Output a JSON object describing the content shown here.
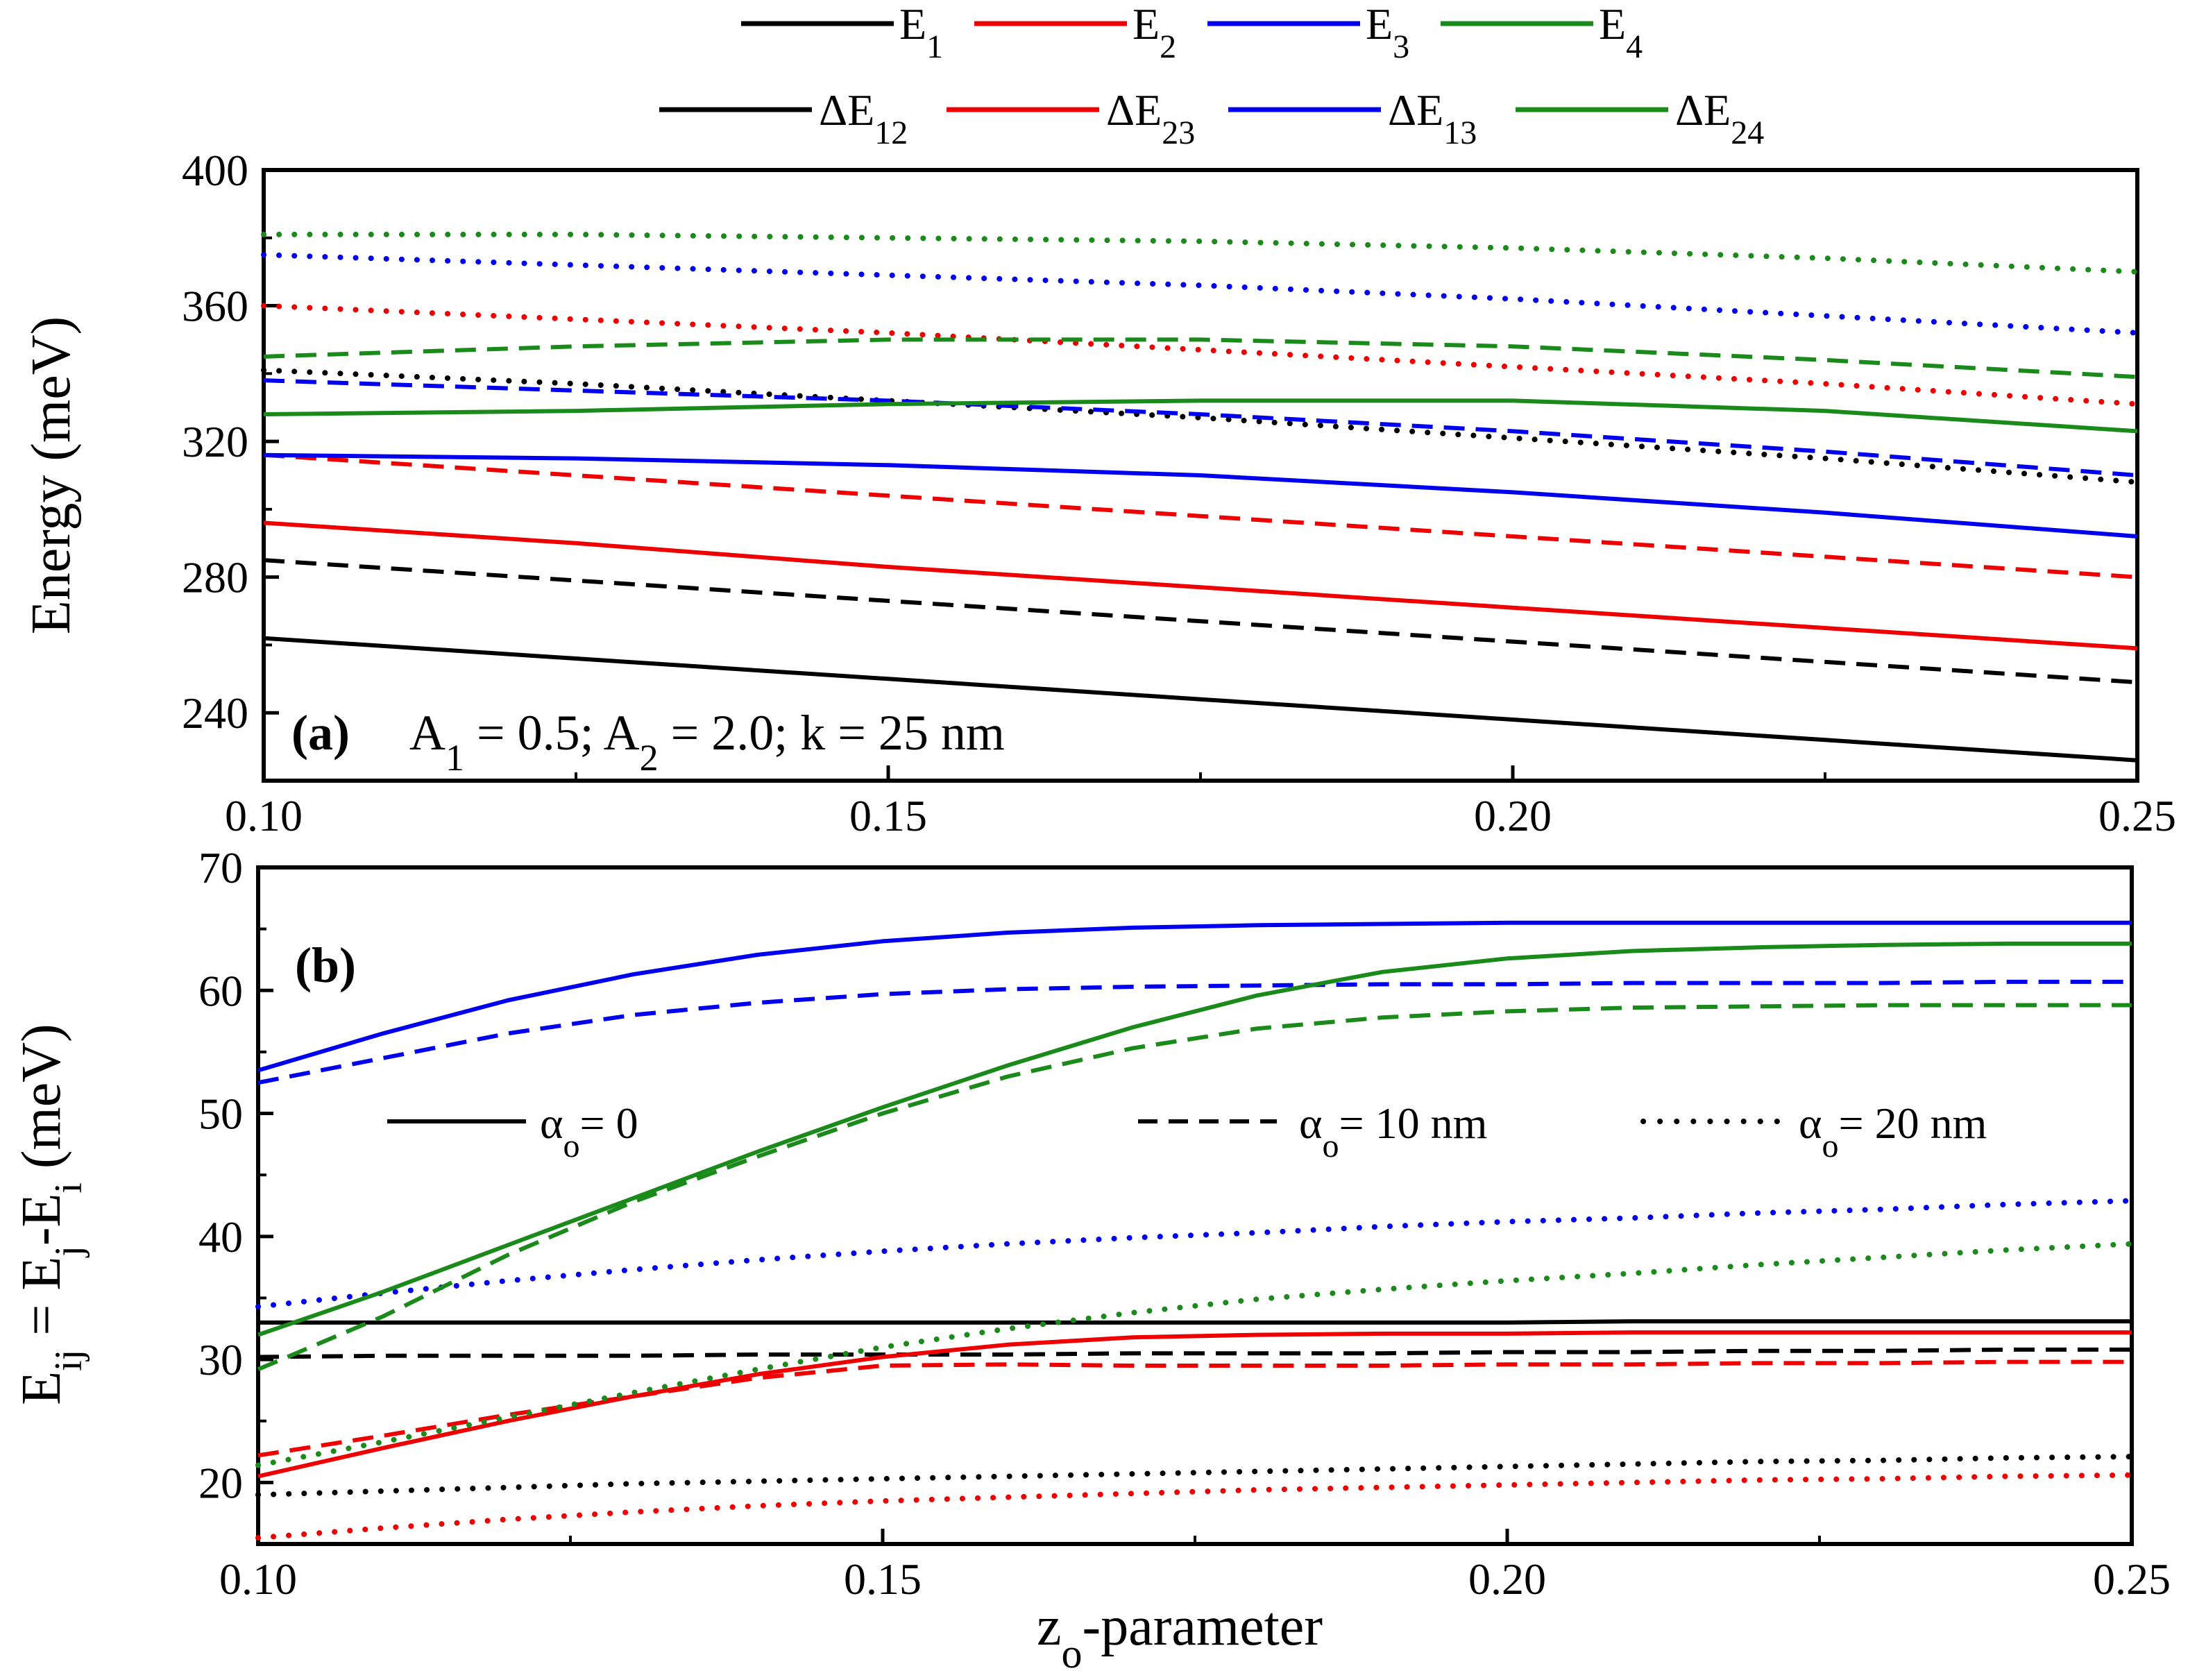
{
  "chart_data": [
    {
      "panel": "a",
      "type": "line",
      "panel_label": "(a)",
      "annotation": {
        "A1": "0.5",
        "A2": "2.0",
        "k": "25 nm"
      },
      "xlabel": "",
      "ylabel": "Energy (meV)",
      "xlim": [
        0.1,
        0.25
      ],
      "ylim": [
        220,
        400
      ],
      "xticks": [
        "0.10",
        "0.15",
        "0.20",
        "0.25"
      ],
      "yticks": [
        "240",
        "280",
        "320",
        "360",
        "400"
      ],
      "x": [
        0.1,
        0.125,
        0.15,
        0.175,
        0.2,
        0.225,
        0.25
      ],
      "series": [
        {
          "name": "E1 (α=0)",
          "color": "#000000",
          "style": "solid",
          "values": [
            262,
            256,
            250,
            244,
            238,
            232,
            226
          ]
        },
        {
          "name": "E1 (α=10 nm)",
          "color": "#000000",
          "style": "dashed",
          "values": [
            285,
            279,
            273,
            267,
            261,
            255,
            249
          ]
        },
        {
          "name": "E1 (α=20 nm)",
          "color": "#000000",
          "style": "dotted",
          "values": [
            341,
            337,
            332,
            327,
            321,
            315,
            308
          ]
        },
        {
          "name": "E2 (α=0)",
          "color": "#ee0000",
          "style": "solid",
          "values": [
            296,
            290,
            283,
            277,
            271,
            265,
            259
          ]
        },
        {
          "name": "E2 (α=10 nm)",
          "color": "#ee0000",
          "style": "dashed",
          "values": [
            316,
            310,
            304,
            298,
            292,
            286,
            280
          ]
        },
        {
          "name": "E2 (α=20 nm)",
          "color": "#ee0000",
          "style": "dotted",
          "values": [
            360,
            356,
            352,
            347,
            342,
            337,
            331
          ]
        },
        {
          "name": "E3 (α=0)",
          "color": "#0000ee",
          "style": "solid",
          "values": [
            316,
            315,
            313,
            310,
            305,
            299,
            292
          ]
        },
        {
          "name": "E3 (α=10 nm)",
          "color": "#0000ee",
          "style": "dashed",
          "values": [
            338,
            335,
            332,
            328,
            323,
            317,
            310
          ]
        },
        {
          "name": "E3 (α=20 nm)",
          "color": "#0000ee",
          "style": "dotted",
          "values": [
            375,
            372,
            369,
            366,
            362,
            357,
            352
          ]
        },
        {
          "name": "E4 (α=0)",
          "color": "#1a8a1a",
          "style": "solid",
          "values": [
            328,
            329,
            331,
            332,
            332,
            329,
            323
          ]
        },
        {
          "name": "E4 (α=10 nm)",
          "color": "#1a8a1a",
          "style": "dashed",
          "values": [
            345,
            348,
            350,
            350,
            348,
            344,
            339
          ]
        },
        {
          "name": "E4 (α=20 nm)",
          "color": "#1a8a1a",
          "style": "dotted",
          "values": [
            381,
            381,
            380,
            379,
            377,
            374,
            370
          ]
        }
      ]
    },
    {
      "panel": "b",
      "type": "line",
      "panel_label": "(b)",
      "xlabel": "zo-parameter",
      "ylabel": "Eij = Ej-Ei (meV)",
      "xlim": [
        0.1,
        0.25
      ],
      "ylim": [
        15,
        70
      ],
      "xticks": [
        "0.10",
        "0.15",
        "0.20",
        "0.25"
      ],
      "yticks": [
        "20",
        "30",
        "40",
        "50",
        "60",
        "70"
      ],
      "x": [
        0.1,
        0.11,
        0.12,
        0.13,
        0.14,
        0.15,
        0.16,
        0.17,
        0.18,
        0.19,
        0.2,
        0.21,
        0.22,
        0.23,
        0.24,
        0.25
      ],
      "series": [
        {
          "name": "ΔE12 (α=0)",
          "color": "#000000",
          "style": "solid",
          "values": [
            33.0,
            33.0,
            33.0,
            33.0,
            33.0,
            33.0,
            33.0,
            33.0,
            33.0,
            33.0,
            33.0,
            33.1,
            33.1,
            33.1,
            33.1,
            33.1
          ]
        },
        {
          "name": "ΔE12 (α=10 nm)",
          "color": "#000000",
          "style": "dashed",
          "values": [
            30.2,
            30.3,
            30.3,
            30.3,
            30.4,
            30.4,
            30.4,
            30.5,
            30.5,
            30.5,
            30.6,
            30.6,
            30.7,
            30.7,
            30.8,
            30.8
          ]
        },
        {
          "name": "ΔE12 (α=20 nm)",
          "color": "#000000",
          "style": "dotted",
          "values": [
            19.0,
            19.3,
            19.6,
            19.9,
            20.1,
            20.3,
            20.5,
            20.7,
            20.9,
            21.1,
            21.3,
            21.5,
            21.7,
            21.8,
            22.0,
            22.1
          ]
        },
        {
          "name": "ΔE23 (α=0)",
          "color": "#ee0000",
          "style": "solid",
          "values": [
            20.5,
            22.8,
            25.0,
            27.0,
            28.8,
            30.2,
            31.2,
            31.8,
            32.0,
            32.1,
            32.1,
            32.2,
            32.2,
            32.2,
            32.2,
            32.2
          ]
        },
        {
          "name": "ΔE23 (α=10 nm)",
          "color": "#ee0000",
          "style": "dashed",
          "values": [
            22.2,
            23.8,
            25.5,
            27.0,
            28.5,
            29.5,
            29.6,
            29.5,
            29.5,
            29.5,
            29.6,
            29.6,
            29.7,
            29.7,
            29.8,
            29.8
          ]
        },
        {
          "name": "ΔE23 (α=20 nm)",
          "color": "#ee0000",
          "style": "dotted",
          "values": [
            15.5,
            16.3,
            17.0,
            17.6,
            18.1,
            18.5,
            18.8,
            19.1,
            19.4,
            19.6,
            19.8,
            20.0,
            20.2,
            20.3,
            20.5,
            20.6
          ]
        },
        {
          "name": "ΔE13 (α=0)",
          "color": "#0000ee",
          "style": "solid",
          "values": [
            53.5,
            56.5,
            59.2,
            61.3,
            62.9,
            64.0,
            64.7,
            65.1,
            65.3,
            65.4,
            65.5,
            65.5,
            65.5,
            65.5,
            65.5,
            65.5
          ]
        },
        {
          "name": "ΔE13 (α=10 nm)",
          "color": "#0000ee",
          "style": "dashed",
          "values": [
            52.5,
            54.5,
            56.5,
            58.0,
            59.0,
            59.7,
            60.1,
            60.3,
            60.4,
            60.5,
            60.5,
            60.6,
            60.6,
            60.6,
            60.7,
            60.7
          ]
        },
        {
          "name": "ΔE13 (α=20 nm)",
          "color": "#0000ee",
          "style": "dotted",
          "values": [
            34.3,
            35.4,
            36.4,
            37.3,
            38.1,
            38.8,
            39.4,
            39.9,
            40.3,
            40.8,
            41.2,
            41.5,
            41.9,
            42.2,
            42.6,
            42.9
          ]
        },
        {
          "name": "ΔE24 (α=0)",
          "color": "#1a8a1a",
          "style": "solid",
          "values": [
            32.0,
            35.5,
            39.3,
            43.1,
            46.9,
            50.5,
            53.9,
            57.0,
            59.6,
            61.5,
            62.6,
            63.2,
            63.5,
            63.7,
            63.8,
            63.8
          ]
        },
        {
          "name": "ΔE24 (α=10 nm)",
          "color": "#1a8a1a",
          "style": "dashed",
          "values": [
            29.2,
            33.5,
            38.5,
            42.8,
            46.5,
            50.0,
            53.0,
            55.3,
            56.9,
            57.8,
            58.3,
            58.6,
            58.7,
            58.8,
            58.8,
            58.8
          ]
        },
        {
          "name": "ΔE24 (α=20 nm)",
          "color": "#1a8a1a",
          "style": "dotted",
          "values": [
            21.4,
            23.3,
            25.3,
            27.3,
            29.2,
            31.0,
            32.5,
            33.8,
            34.9,
            35.7,
            36.4,
            37.0,
            37.7,
            38.3,
            38.9,
            39.4
          ]
        }
      ]
    }
  ],
  "legend": {
    "row1": [
      "E1",
      "E2",
      "E3",
      "E4"
    ],
    "row2": [
      "ΔE12",
      "ΔE23",
      "ΔE13",
      "ΔE24"
    ],
    "colors": [
      "#000000",
      "#ee0000",
      "#0000ee",
      "#1a8a1a"
    ],
    "styles": [
      {
        "style": "solid",
        "label": "αo= 0"
      },
      {
        "style": "dashed",
        "label": "αo= 10 nm"
      },
      {
        "style": "dotted",
        "label": "αo= 20 nm"
      }
    ]
  }
}
